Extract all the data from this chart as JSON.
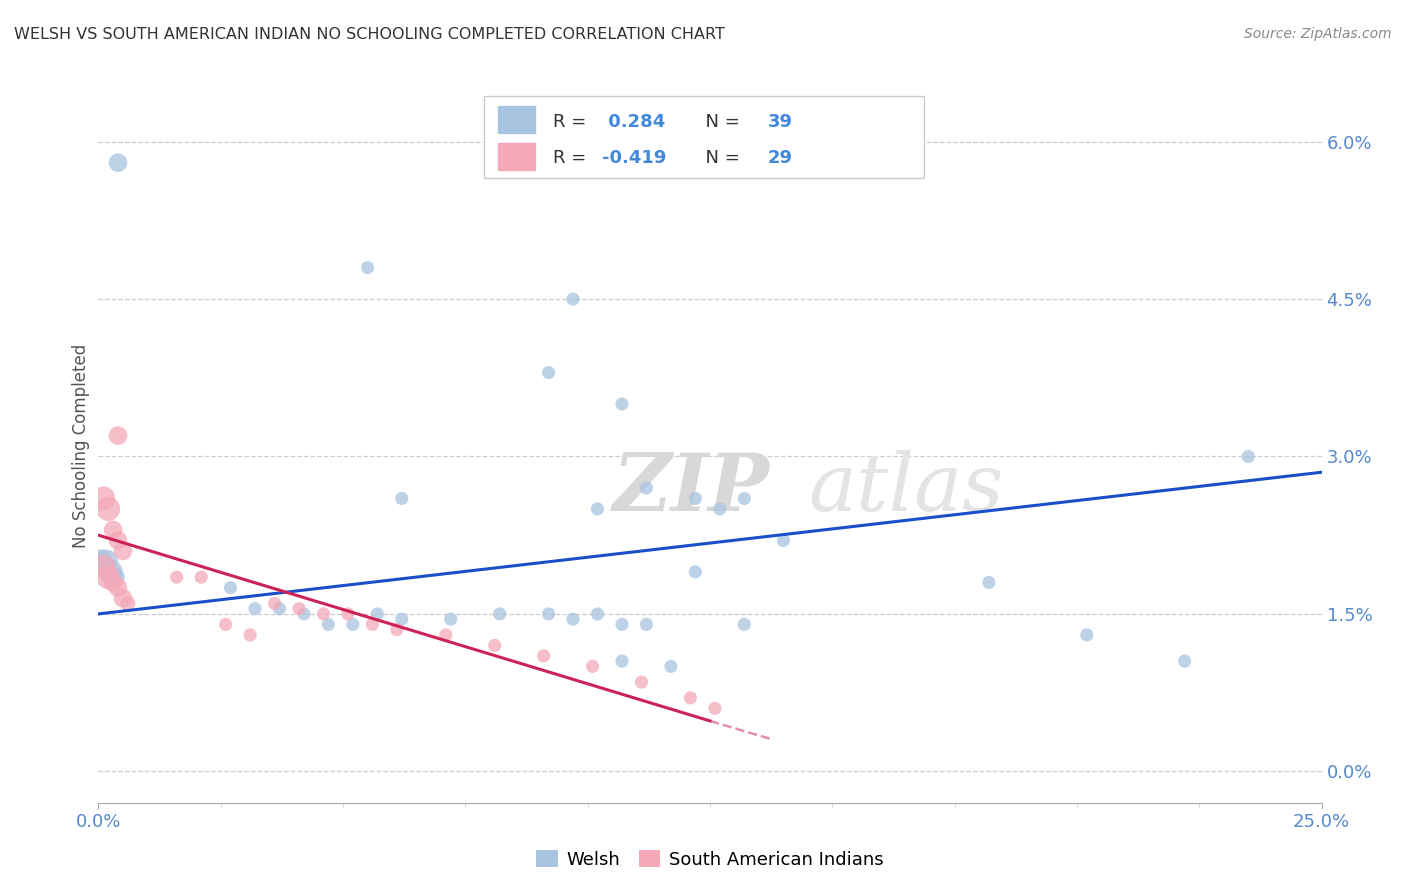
{
  "title": "WELSH VS SOUTH AMERICAN INDIAN NO SCHOOLING COMPLETED CORRELATION CHART",
  "source": "Source: ZipAtlas.com",
  "ylabel": "No Schooling Completed",
  "ytick_vals": [
    0.0,
    1.5,
    3.0,
    4.5,
    6.0
  ],
  "xlim": [
    0.0,
    25.0
  ],
  "ylim": [
    -0.3,
    6.5
  ],
  "legend1_label": "Welsh",
  "legend2_label": "South American Indians",
  "welsh_R": "0.284",
  "welsh_N": "39",
  "sai_R": "-0.419",
  "sai_N": "29",
  "welsh_color": "#a8c4e0",
  "sai_color": "#f4a8b8",
  "welsh_line_color": "#1a4fcc",
  "sai_line_color": "#cc2255",
  "background_color": "#ffffff",
  "watermark_zip": "ZIP",
  "watermark_atlas": "atlas",
  "welsh_points": [
    [
      0.4,
      5.8
    ],
    [
      5.5,
      4.8
    ],
    [
      9.2,
      3.8
    ],
    [
      9.7,
      4.5
    ],
    [
      10.7,
      3.5
    ],
    [
      11.2,
      2.7
    ],
    [
      12.2,
      2.6
    ],
    [
      12.7,
      2.5
    ],
    [
      13.2,
      2.6
    ],
    [
      0.05,
      2.0
    ],
    [
      0.15,
      2.0
    ],
    [
      0.25,
      1.9
    ],
    [
      0.35,
      1.85
    ],
    [
      2.7,
      1.75
    ],
    [
      3.2,
      1.55
    ],
    [
      3.7,
      1.55
    ],
    [
      4.2,
      1.5
    ],
    [
      4.7,
      1.4
    ],
    [
      5.2,
      1.4
    ],
    [
      5.7,
      1.5
    ],
    [
      6.2,
      1.45
    ],
    [
      7.2,
      1.45
    ],
    [
      8.2,
      1.5
    ],
    [
      9.2,
      1.5
    ],
    [
      9.7,
      1.45
    ],
    [
      10.2,
      1.5
    ],
    [
      10.7,
      1.4
    ],
    [
      11.2,
      1.4
    ],
    [
      12.2,
      1.9
    ],
    [
      13.2,
      1.4
    ],
    [
      18.2,
      1.8
    ],
    [
      20.2,
      1.3
    ],
    [
      22.2,
      1.05
    ],
    [
      23.5,
      3.0
    ],
    [
      10.7,
      1.05
    ],
    [
      11.7,
      1.0
    ],
    [
      6.2,
      2.6
    ],
    [
      10.2,
      2.5
    ],
    [
      14.0,
      2.2
    ]
  ],
  "sai_points": [
    [
      0.4,
      3.2
    ],
    [
      0.1,
      2.6
    ],
    [
      0.2,
      2.5
    ],
    [
      0.3,
      2.3
    ],
    [
      0.4,
      2.2
    ],
    [
      0.5,
      2.1
    ],
    [
      0.1,
      1.95
    ],
    [
      0.2,
      1.85
    ],
    [
      0.3,
      1.8
    ],
    [
      0.4,
      1.75
    ],
    [
      0.5,
      1.65
    ],
    [
      0.6,
      1.6
    ],
    [
      1.6,
      1.85
    ],
    [
      2.1,
      1.85
    ],
    [
      2.6,
      1.4
    ],
    [
      3.1,
      1.3
    ],
    [
      3.6,
      1.6
    ],
    [
      4.1,
      1.55
    ],
    [
      4.6,
      1.5
    ],
    [
      5.1,
      1.5
    ],
    [
      5.6,
      1.4
    ],
    [
      6.1,
      1.35
    ],
    [
      7.1,
      1.3
    ],
    [
      8.1,
      1.2
    ],
    [
      9.1,
      1.1
    ],
    [
      10.1,
      1.0
    ],
    [
      11.1,
      0.85
    ],
    [
      12.1,
      0.7
    ],
    [
      12.6,
      0.6
    ]
  ],
  "welsh_line": [
    [
      0.0,
      1.5
    ],
    [
      25.0,
      2.85
    ]
  ],
  "sai_line": [
    [
      0.0,
      2.25
    ],
    [
      12.5,
      0.48
    ]
  ],
  "sai_line_dashed": [
    [
      12.5,
      0.48
    ],
    [
      13.8,
      0.3
    ]
  ]
}
